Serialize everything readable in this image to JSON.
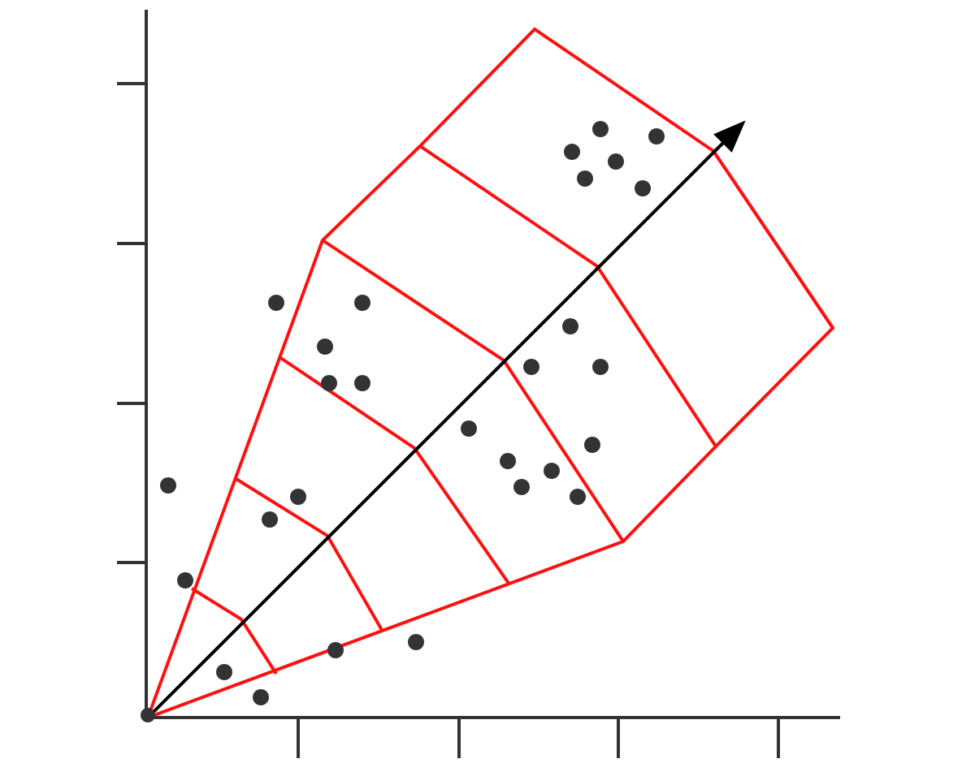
{
  "colors": {
    "axis": "#333333",
    "grid_lines": "#ff1010",
    "points": "#333333",
    "direction_arrow": "#000000",
    "background": "#ffffff"
  },
  "axes": {
    "x_tick_count": 4,
    "y_tick_count": 4,
    "tick_labels_shown": false
  },
  "origin_marker_icon": "filled-circle",
  "direction_arrow_icon": "arrow-head"
}
